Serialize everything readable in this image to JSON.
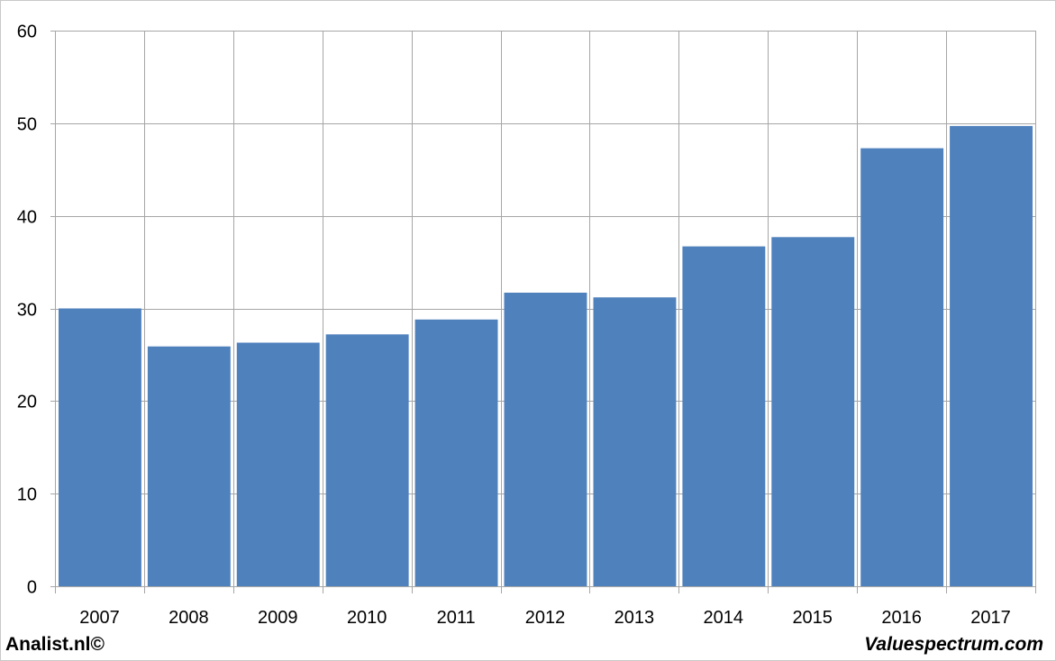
{
  "chart_data": {
    "type": "bar",
    "categories": [
      "2007",
      "2008",
      "2009",
      "2010",
      "2011",
      "2012",
      "2013",
      "2014",
      "2015",
      "2016",
      "2017"
    ],
    "values": [
      30.0,
      25.9,
      26.3,
      27.2,
      28.8,
      31.7,
      31.2,
      36.7,
      37.7,
      47.3,
      49.7
    ],
    "ylim": [
      0,
      60
    ],
    "yticks": [
      "0",
      "10",
      "20",
      "30",
      "40",
      "50",
      "60"
    ],
    "grid": true,
    "bar_color": "#4f81bd",
    "grid_color": "#a6a6a6"
  },
  "footer": {
    "left": "Analist.nl©",
    "right": "Valuespectrum.com"
  }
}
